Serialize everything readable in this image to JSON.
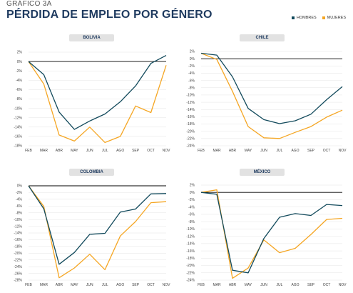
{
  "header": {
    "kicker": "GRÁFICO 3A",
    "title": "PÉRDIDA DE EMPLEO POR GÉNERO"
  },
  "legend": {
    "men": "HOMBRES",
    "women": "MUJERES"
  },
  "colors": {
    "men": "#124a5c",
    "women": "#f5a623",
    "zero_line": "#000000",
    "grid": "#dddddd"
  },
  "chart_data": [
    {
      "type": "line",
      "title": "BOLIVIA",
      "categories": [
        "FEB",
        "MAR",
        "ABR",
        "MAY",
        "JUN",
        "JUL",
        "AGO",
        "SEP",
        "OCT",
        "NOV"
      ],
      "ylim": [
        -18,
        2
      ],
      "yticks": [
        2,
        0,
        -2,
        -4,
        -6,
        -8,
        -10,
        -12,
        -14,
        -16,
        -18
      ],
      "series": [
        {
          "name": "HOMBRES",
          "values": [
            0,
            -2.8,
            -10.8,
            -14.5,
            -12.7,
            -11.2,
            -8.6,
            -5.2,
            -0.4,
            1.3
          ]
        },
        {
          "name": "MUJERES",
          "values": [
            0,
            -4.8,
            -15.7,
            -17,
            -14,
            -17.3,
            -16,
            -9.5,
            -10.9,
            -0.8
          ]
        }
      ]
    },
    {
      "type": "line",
      "title": "CHILE",
      "categories": [
        "FEB",
        "MAR",
        "ABR",
        "MAY",
        "JUN",
        "JUL",
        "AGO",
        "SEP",
        "OCT",
        "NOV"
      ],
      "ylim": [
        -24,
        2
      ],
      "yticks": [
        2,
        0,
        -2,
        -4,
        -6,
        -8,
        -10,
        -12,
        -14,
        -16,
        -18,
        -20,
        -22,
        -24
      ],
      "series": [
        {
          "name": "HOMBRES",
          "values": [
            1.5,
            1,
            -5,
            -13.7,
            -16.8,
            -17.9,
            -17.1,
            -15.3,
            -11.3,
            -7.7
          ]
        },
        {
          "name": "MUJERES",
          "values": [
            1.5,
            -0.2,
            -9,
            -18.7,
            -21.8,
            -22,
            -20.3,
            -18.7,
            -16.1,
            -14.2
          ]
        }
      ]
    },
    {
      "type": "line",
      "title": "COLOMBIA",
      "categories": [
        "FEB",
        "MAR",
        "ABR",
        "MAY",
        "JUN",
        "JUL",
        "AGO",
        "SEP",
        "OCT",
        "NOV"
      ],
      "ylim": [
        -28,
        0
      ],
      "yticks": [
        0,
        -2,
        -4,
        -6,
        -8,
        -10,
        -12,
        -14,
        -16,
        -18,
        -20,
        -22,
        -24,
        -26,
        -28
      ],
      "series": [
        {
          "name": "HOMBRES",
          "values": [
            0,
            -6.8,
            -23.3,
            -19.8,
            -14.4,
            -14.1,
            -7.8,
            -6.9,
            -2.4,
            -2.3
          ]
        },
        {
          "name": "MUJERES",
          "values": [
            0,
            -6.1,
            -27.3,
            -24.4,
            -20.3,
            -24.9,
            -14.9,
            -10.6,
            -5,
            -4.7
          ]
        }
      ]
    },
    {
      "type": "line",
      "title": "MÉXICO",
      "categories": [
        "FEB",
        "MAR",
        "ABR",
        "MAY",
        "JUN",
        "JUL",
        "AGO",
        "SEP",
        "OCT",
        "NOV"
      ],
      "ylim": [
        -24,
        2
      ],
      "yticks": [
        2,
        0,
        -2,
        -4,
        -6,
        -8,
        -10,
        -12,
        -14,
        -16,
        -18,
        -20,
        -22,
        -24
      ],
      "series": [
        {
          "name": "HOMBRES",
          "values": [
            0,
            -0.5,
            -21.3,
            -22,
            -12.6,
            -6.8,
            -5.8,
            -6.3,
            -3.3,
            -3.6
          ]
        },
        {
          "name": "MUJERES",
          "values": [
            0,
            0.7,
            -23.5,
            -20.7,
            -13,
            -16.5,
            -15.3,
            -11.5,
            -7.4,
            -7.1
          ]
        }
      ]
    }
  ]
}
